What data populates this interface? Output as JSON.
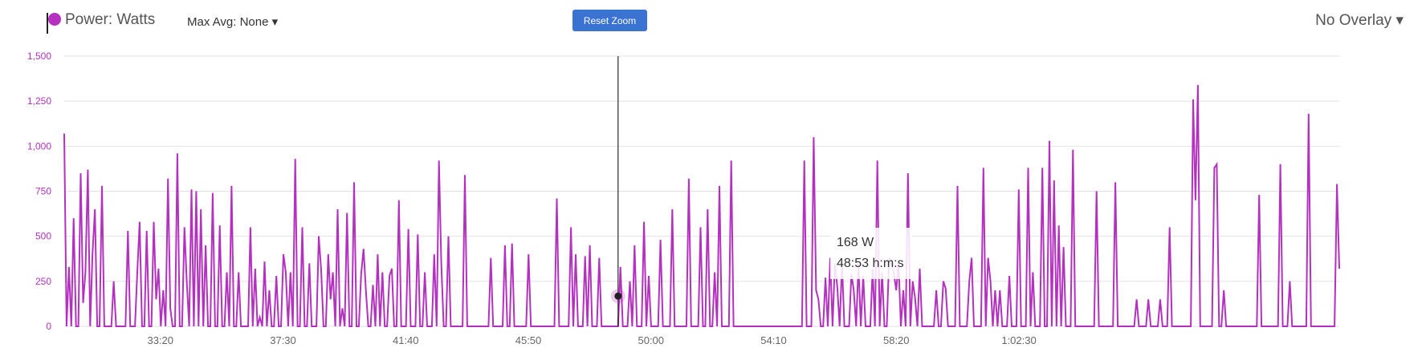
{
  "header": {
    "series_label": "Power: Watts",
    "max_avg": "Max Avg: None ▾",
    "reset_zoom": "Reset Zoom",
    "overlay": "No Overlay ▾"
  },
  "tooltip": {
    "value": "168 W",
    "time": "48:53 h:m:s"
  },
  "colors": {
    "series": "#b431c0",
    "button": "#3b73d3",
    "grid": "#e2e2e2",
    "crosshair": "#000000"
  },
  "chart_data": {
    "type": "line",
    "x_unit": "h:m:s",
    "y_unit": "W",
    "ylim": [
      0,
      1500
    ],
    "y_ticks": [
      "0",
      "250",
      "500",
      "750",
      "1,000",
      "1,250",
      "1,500"
    ],
    "x_ticks": [
      "33:20",
      "37:30",
      "41:40",
      "45:50",
      "50:00",
      "54:10",
      "58:20",
      "1:02:30"
    ],
    "xlim_seconds": [
      1804,
      4403
    ],
    "x_tick_seconds": [
      2000,
      2250,
      2500,
      2750,
      3000,
      3250,
      3500,
      3750
    ],
    "grid": true,
    "series": [
      {
        "values": [
          1070,
          0,
          330,
          0,
          600,
          0,
          0,
          850,
          130,
          300,
          870,
          0,
          400,
          650,
          0,
          0,
          780,
          0,
          0,
          0,
          0,
          250,
          0,
          0,
          0,
          0,
          0,
          530,
          0,
          0,
          0,
          300,
          580,
          0,
          0,
          530,
          0,
          0,
          580,
          150,
          320,
          0,
          200,
          0,
          820,
          100,
          0,
          0,
          960,
          0,
          0,
          550,
          250,
          0,
          760,
          0,
          750,
          0,
          650,
          0,
          450,
          0,
          0,
          740,
          0,
          0,
          560,
          0,
          0,
          300,
          0,
          780,
          0,
          0,
          300,
          0,
          0,
          0,
          0,
          550,
          0,
          320,
          0,
          50,
          0,
          360,
          0,
          200,
          0,
          0,
          280,
          0,
          0,
          400,
          300,
          0,
          300,
          0,
          930,
          0,
          0,
          550,
          0,
          0,
          350,
          0,
          0,
          0,
          500,
          320,
          0,
          0,
          400,
          150,
          300,
          0,
          650,
          0,
          100,
          0,
          630,
          0,
          0,
          800,
          0,
          0,
          290,
          430,
          200,
          0,
          0,
          230,
          0,
          400,
          0,
          300,
          0,
          0,
          280,
          320,
          0,
          0,
          700,
          0,
          0,
          0,
          540,
          0,
          0,
          0,
          510,
          0,
          0,
          300,
          0,
          0,
          0,
          400,
          0,
          920,
          350,
          0,
          0,
          500,
          0,
          0,
          0,
          0,
          0,
          0,
          840,
          0,
          0,
          0,
          0,
          0,
          0,
          0,
          0,
          0,
          0,
          380,
          0,
          0,
          0,
          0,
          0,
          450,
          0,
          0,
          460,
          0,
          0,
          0,
          0,
          0,
          0,
          400,
          0,
          0,
          0,
          0,
          0,
          0,
          0,
          0,
          0,
          0,
          0,
          710,
          0,
          0,
          0,
          0,
          0,
          550,
          0,
          400,
          0,
          0,
          0,
          390,
          0,
          450,
          0,
          0,
          0,
          380,
          0,
          0,
          0,
          0,
          0,
          0,
          0,
          0,
          330,
          0,
          0,
          0,
          250,
          0,
          450,
          0,
          0,
          0,
          580,
          0,
          280,
          0,
          0,
          0,
          0,
          480,
          0,
          0,
          0,
          0,
          650,
          0,
          0,
          0,
          0,
          0,
          0,
          820,
          0,
          0,
          0,
          0,
          550,
          0,
          0,
          650,
          0,
          0,
          300,
          0,
          780,
          0,
          0,
          0,
          0,
          920,
          0,
          0,
          0,
          0,
          0,
          0,
          0,
          0,
          0,
          0,
          0,
          0,
          0,
          0,
          0,
          0,
          0,
          0,
          0,
          0,
          0,
          0,
          0,
          0,
          0,
          0,
          0,
          0,
          0,
          0,
          920,
          0,
          0,
          0,
          1050,
          200,
          150,
          0,
          0,
          270,
          0,
          380,
          0,
          350,
          220,
          0,
          350,
          0,
          0,
          0,
          290,
          200,
          0,
          350,
          0,
          280,
          0,
          0,
          0,
          320,
          0,
          920,
          0,
          300,
          0,
          0,
          380,
          340,
          300,
          200,
          350,
          0,
          200,
          0,
          850,
          0,
          250,
          160,
          0,
          320,
          0,
          0,
          0,
          0,
          0,
          0,
          200,
          0,
          0,
          250,
          210,
          0,
          0,
          0,
          0,
          780,
          0,
          0,
          0,
          0,
          250,
          380,
          0,
          0,
          0,
          0,
          880,
          0,
          380,
          250,
          0,
          200,
          0,
          200,
          0,
          0,
          0,
          280,
          0,
          0,
          0,
          760,
          0,
          0,
          0,
          880,
          0,
          300,
          0,
          0,
          0,
          880,
          0,
          0,
          1030,
          0,
          810,
          0,
          560,
          0,
          440,
          0,
          0,
          0,
          980,
          0,
          0,
          0,
          0,
          0,
          0,
          0,
          0,
          0,
          750,
          0,
          0,
          0,
          0,
          0,
          0,
          0,
          800,
          0,
          0,
          0,
          0,
          0,
          0,
          0,
          0,
          150,
          0,
          0,
          0,
          0,
          150,
          0,
          0,
          0,
          0,
          150,
          0,
          0,
          0,
          550,
          0,
          0,
          0,
          0,
          0,
          0,
          0,
          0,
          0,
          1260,
          700,
          1340,
          0,
          0,
          0,
          0,
          0,
          0,
          880,
          900,
          0,
          0,
          200,
          0,
          0,
          0,
          0,
          0,
          0,
          0,
          0,
          0,
          0,
          0,
          0,
          0,
          0,
          730,
          0,
          0,
          0,
          0,
          0,
          0,
          0,
          0,
          900,
          0,
          0,
          0,
          250,
          0,
          0,
          0,
          0,
          0,
          0,
          0,
          1180,
          0,
          0,
          0,
          0,
          0,
          0,
          0,
          0,
          0,
          0,
          0,
          790,
          320
        ]
      }
    ],
    "crosshair_x_seconds": 2933,
    "marker_value": 168
  }
}
